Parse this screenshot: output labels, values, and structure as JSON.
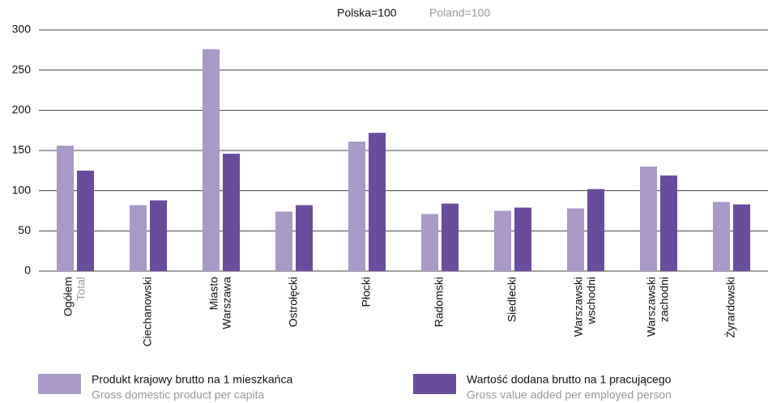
{
  "chart_data": {
    "type": "bar",
    "title": "Polska=100",
    "title_en": "Poland=100",
    "categories": [
      {
        "lines": [
          "Ogółem"
        ],
        "en": "Total"
      },
      {
        "lines": [
          "Ciechanowski"
        ]
      },
      {
        "lines": [
          "Miasto",
          "Warszawa"
        ]
      },
      {
        "lines": [
          "Ostrołęcki"
        ]
      },
      {
        "lines": [
          "Płocki"
        ]
      },
      {
        "lines": [
          "Radomski"
        ]
      },
      {
        "lines": [
          "Siedlecki"
        ]
      },
      {
        "lines": [
          "Warszawski",
          "wschodni"
        ]
      },
      {
        "lines": [
          "Warszawski",
          "zachodni"
        ]
      },
      {
        "lines": [
          "Żyrardowski"
        ]
      }
    ],
    "series": [
      {
        "name": "Produkt krajowy brutto na 1 mieszkańca",
        "name_en": "Gross domestic product per capita",
        "color": "#a899c9",
        "values": [
          156,
          82,
          276,
          74,
          161,
          71,
          75,
          78,
          130,
          86
        ]
      },
      {
        "name": "Wartość dodana brutto na 1 pracującego",
        "name_en": "Gross value added per employed person",
        "color": "#6a4c9c",
        "values": [
          125,
          88,
          146,
          82,
          172,
          84,
          79,
          102,
          119,
          83
        ]
      }
    ],
    "ylim": [
      0,
      300
    ],
    "yticks": [
      0,
      50,
      100,
      150,
      200,
      250,
      300
    ],
    "grid": true
  }
}
